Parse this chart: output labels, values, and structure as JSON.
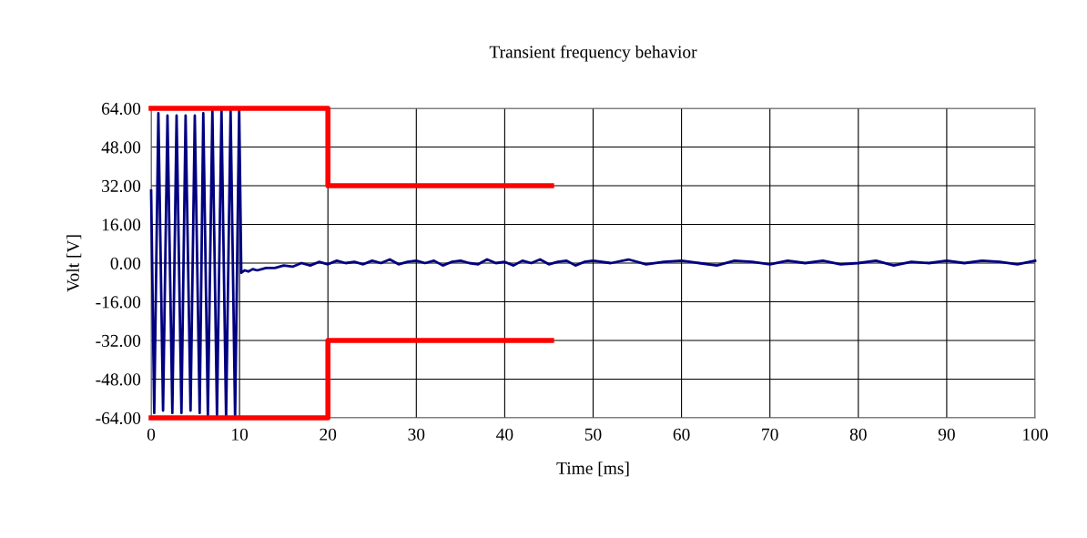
{
  "chart_data": {
    "type": "line",
    "title": "Transient frequency behavior",
    "xlabel": "Time [ms]",
    "ylabel": "Volt [V]",
    "xlim": [
      0,
      100
    ],
    "xticks": [
      0,
      10,
      20,
      30,
      40,
      50,
      60,
      70,
      80,
      90,
      100
    ],
    "ylim": [
      -64,
      64
    ],
    "yticks": [
      {
        "value": -64,
        "label": "-64.00"
      },
      {
        "value": -48,
        "label": "-48.00"
      },
      {
        "value": -32,
        "label": "-32.00"
      },
      {
        "value": -16,
        "label": "-16.00"
      },
      {
        "value": 0,
        "label": "0.00"
      },
      {
        "value": 16,
        "label": "16.00"
      },
      {
        "value": 32,
        "label": "32.00"
      },
      {
        "value": 48,
        "label": "48.00"
      },
      {
        "value": 64,
        "label": "64.00"
      }
    ],
    "grid": true,
    "legend": false,
    "marker": "none",
    "line_style": "solid",
    "series": [
      {
        "color": "#000080",
        "x": [
          0,
          0.35,
          0.82,
          1.35,
          1.85,
          2.4,
          2.88,
          3.43,
          3.9,
          4.46,
          4.94,
          5.49,
          5.9,
          6.42,
          6.93,
          7.45,
          7.96,
          8.48,
          8.99,
          9.5,
          9.96,
          10.2,
          10.6,
          11,
          11.5,
          12,
          13,
          14,
          15,
          16,
          17,
          18,
          19,
          20,
          21,
          22,
          23,
          24,
          25,
          26,
          27,
          28,
          29,
          30,
          31,
          32,
          33,
          34,
          35,
          36,
          37,
          38,
          39,
          40,
          41,
          42,
          43,
          44,
          45,
          46,
          47,
          48,
          49,
          50,
          52,
          54,
          56,
          58,
          60,
          62,
          64,
          66,
          68,
          70,
          72,
          74,
          76,
          78,
          80,
          82,
          84,
          86,
          88,
          90,
          92,
          94,
          96,
          98,
          100
        ],
        "values": [
          30,
          -62,
          62,
          -61,
          61,
          -62,
          61,
          -62,
          61,
          -61,
          61,
          -62,
          62,
          -63,
          63,
          -63,
          63,
          -64,
          63,
          -64,
          64,
          -4,
          -3,
          -3.5,
          -2.5,
          -3,
          -2,
          -2,
          -1,
          -1.5,
          0,
          -1,
          0.5,
          -0.5,
          1,
          0,
          0.5,
          -0.5,
          1,
          0,
          1.5,
          -0.5,
          0.5,
          1,
          0,
          1,
          -1,
          0.5,
          1,
          0,
          -0.5,
          1.5,
          0,
          0.5,
          -1,
          1,
          0,
          1.5,
          -0.5,
          0.5,
          1,
          -1,
          0.5,
          1,
          0,
          1.5,
          -0.5,
          0.5,
          1,
          0,
          -1,
          1,
          0.5,
          -0.5,
          1,
          0,
          1,
          -0.5,
          0,
          1,
          -1,
          0.5,
          0,
          1,
          0,
          1,
          0.5,
          -0.5,
          1
        ]
      },
      {
        "color": "#ff0000",
        "x": [
          0,
          20,
          20,
          45.3
        ],
        "values": [
          64,
          64,
          32,
          32
        ]
      },
      {
        "color": "#ff0000",
        "x": [
          0,
          20,
          20,
          45.3
        ],
        "values": [
          -64,
          -64,
          -32,
          -32
        ]
      }
    ]
  }
}
